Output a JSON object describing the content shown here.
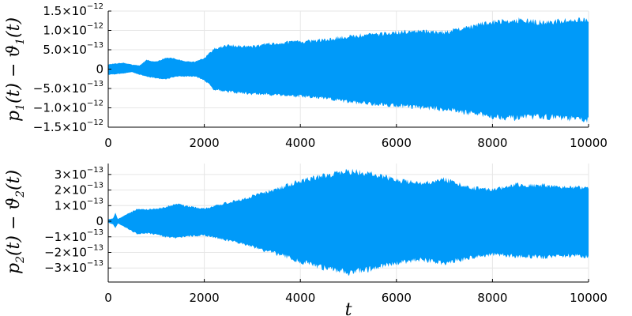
{
  "chart_data": [
    {
      "type": "area",
      "ylabel": {
        "base": "p",
        "sub1": "1",
        "mid": "(t) − ϑ",
        "sub2": "1",
        "end": "(t)"
      },
      "xlabel": "",
      "xlim": [
        0,
        10000
      ],
      "ylim": [
        -1.5e-12,
        1.5e-12
      ],
      "x_ticks": [
        0,
        2000,
        4000,
        6000,
        8000,
        10000
      ],
      "x_tick_labels": [
        "0",
        "2000",
        "4000",
        "6000",
        "8000",
        "10000"
      ],
      "y_ticks": [
        1.5e-12,
        1e-12,
        5e-13,
        0,
        -5e-13,
        -1e-12,
        -1.5e-12
      ],
      "y_tick_labels": [
        {
          "m": "1.5×10",
          "e": "−12"
        },
        {
          "m": "1.0×10",
          "e": "−12"
        },
        {
          "m": "5.0×10",
          "e": "−13"
        },
        {
          "m": "0",
          "e": ""
        },
        {
          "m": "−5.0×10",
          "e": "−13"
        },
        {
          "m": "−1.0×10",
          "e": "−12"
        },
        {
          "m": "−1.5×10",
          "e": "−12"
        }
      ],
      "grid": true,
      "legend": "none",
      "color": "#009af9",
      "envelope_x": [
        0,
        300,
        500,
        650,
        800,
        1000,
        1200,
        1400,
        1600,
        1800,
        2000,
        2200,
        2500,
        3000,
        3500,
        4000,
        4500,
        5000,
        5500,
        6000,
        6500,
        7000,
        7500,
        8000,
        8500,
        9000,
        9500,
        10000
      ],
      "envelope_upper": [
        1.3e-13,
        1.8e-13,
        1.2e-13,
        1e-13,
        2.5e-13,
        2e-13,
        3.2e-13,
        2.8e-13,
        2.2e-13,
        2e-13,
        3e-13,
        5.5e-13,
        6.5e-13,
        6.2e-13,
        7.2e-13,
        7.5e-13,
        8e-13,
        9e-13,
        9.5e-13,
        1e-12,
        1.05e-12,
        1e-12,
        1.15e-12,
        1.3e-12,
        1.35e-12,
        1.28e-12,
        1.32e-12,
        1.38e-12
      ],
      "envelope_lower": [
        -1.5e-13,
        -1.2e-13,
        -8e-14,
        -1.5e-13,
        -2e-13,
        -2.5e-13,
        -2.8e-13,
        -2e-13,
        -2e-13,
        -2e-13,
        -3e-13,
        -5.5e-13,
        -6.2e-13,
        -6.8e-13,
        -7e-13,
        -7.5e-13,
        -8e-13,
        -9e-13,
        -9.5e-13,
        -1e-12,
        -1.05e-12,
        -1.1e-12,
        -1.2e-12,
        -1.3e-12,
        -1.35e-12,
        -1.3e-12,
        -1.35e-12,
        -1.4e-12
      ]
    },
    {
      "type": "area",
      "ylabel": {
        "base": "p",
        "sub1": "2",
        "mid": "(t) − ϑ",
        "sub2": "2",
        "end": "(t)"
      },
      "xlabel": "t",
      "xlim": [
        0,
        10000
      ],
      "ylim": [
        -3.9e-13,
        3.7e-13
      ],
      "x_ticks": [
        0,
        2000,
        4000,
        6000,
        8000,
        10000
      ],
      "x_tick_labels": [
        "0",
        "2000",
        "4000",
        "6000",
        "8000",
        "10000"
      ],
      "y_ticks": [
        3e-13,
        2e-13,
        1e-13,
        0,
        -1e-13,
        -2e-13,
        -3e-13
      ],
      "y_tick_labels": [
        {
          "m": "3×10",
          "e": "−13"
        },
        {
          "m": "2×10",
          "e": "−13"
        },
        {
          "m": "1×10",
          "e": "−13"
        },
        {
          "m": "0",
          "e": ""
        },
        {
          "m": "−1×10",
          "e": "−13"
        },
        {
          "m": "−2×10",
          "e": "−13"
        },
        {
          "m": "−3×10",
          "e": "−13"
        }
      ],
      "grid": true,
      "legend": "none",
      "color": "#009af9",
      "envelope_x": [
        0,
        100,
        150,
        200,
        400,
        600,
        800,
        1000,
        1200,
        1400,
        1600,
        1800,
        2000,
        2400,
        2800,
        3200,
        3600,
        4000,
        4500,
        5000,
        5500,
        6000,
        6500,
        7000,
        7500,
        8000,
        8500,
        9000,
        9500,
        10000
      ],
      "envelope_upper": [
        1.2e-14,
        2e-14,
        5.5e-14,
        1.5e-14,
        5e-14,
        8e-14,
        8e-14,
        8.5e-14,
        9.5e-14,
        1.2e-13,
        1.05e-13,
        9.5e-14,
        8.5e-14,
        1.2e-13,
        1.5e-13,
        1.9e-13,
        2.3e-13,
        2.75e-13,
        3.1e-13,
        3.4e-13,
        3.25e-13,
        2.8e-13,
        2.55e-13,
        2.85e-13,
        2.3e-13,
        2.15e-13,
        2.5e-13,
        2.45e-13,
        2.3e-13,
        2.3e-13
      ],
      "envelope_lower": [
        -1e-14,
        -2e-14,
        -5e-14,
        -1.5e-14,
        -5e-14,
        -8.5e-14,
        -8e-14,
        -9e-14,
        -1.05e-13,
        -1.15e-13,
        -1.05e-13,
        -1e-13,
        -9.5e-14,
        -1.25e-13,
        -1.55e-13,
        -1.95e-13,
        -2.3e-13,
        -2.75e-13,
        -3.2e-13,
        -3.5e-13,
        -3.25e-13,
        -2.85e-13,
        -2.6e-13,
        -2.85e-13,
        -2.5e-13,
        -2.25e-13,
        -2.4e-13,
        -2.45e-13,
        -2.35e-13,
        -2.4e-13
      ]
    }
  ]
}
